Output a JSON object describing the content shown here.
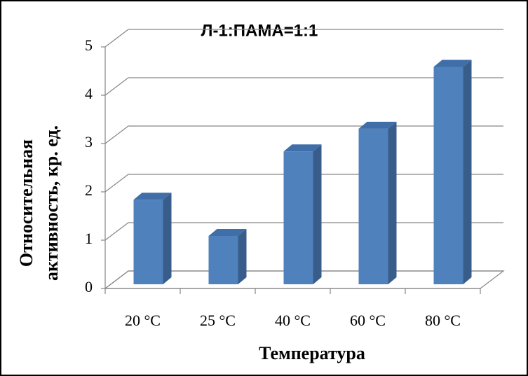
{
  "chart_data": {
    "type": "bar3d",
    "title": "Л-1:ПАМА=1:1",
    "categories": [
      "20 °C",
      "25 °C",
      "40 °C",
      "60 °C",
      "80 °C"
    ],
    "values": [
      1.75,
      1.0,
      2.75,
      3.22,
      4.5
    ],
    "color": "#4f81bd",
    "ylim": [
      0,
      5
    ],
    "yticks": [
      0,
      1,
      2,
      3,
      4,
      5
    ],
    "grid": true,
    "x_label": "Температура",
    "y_label": [
      "Относительная",
      "активность, кр. ед."
    ]
  }
}
